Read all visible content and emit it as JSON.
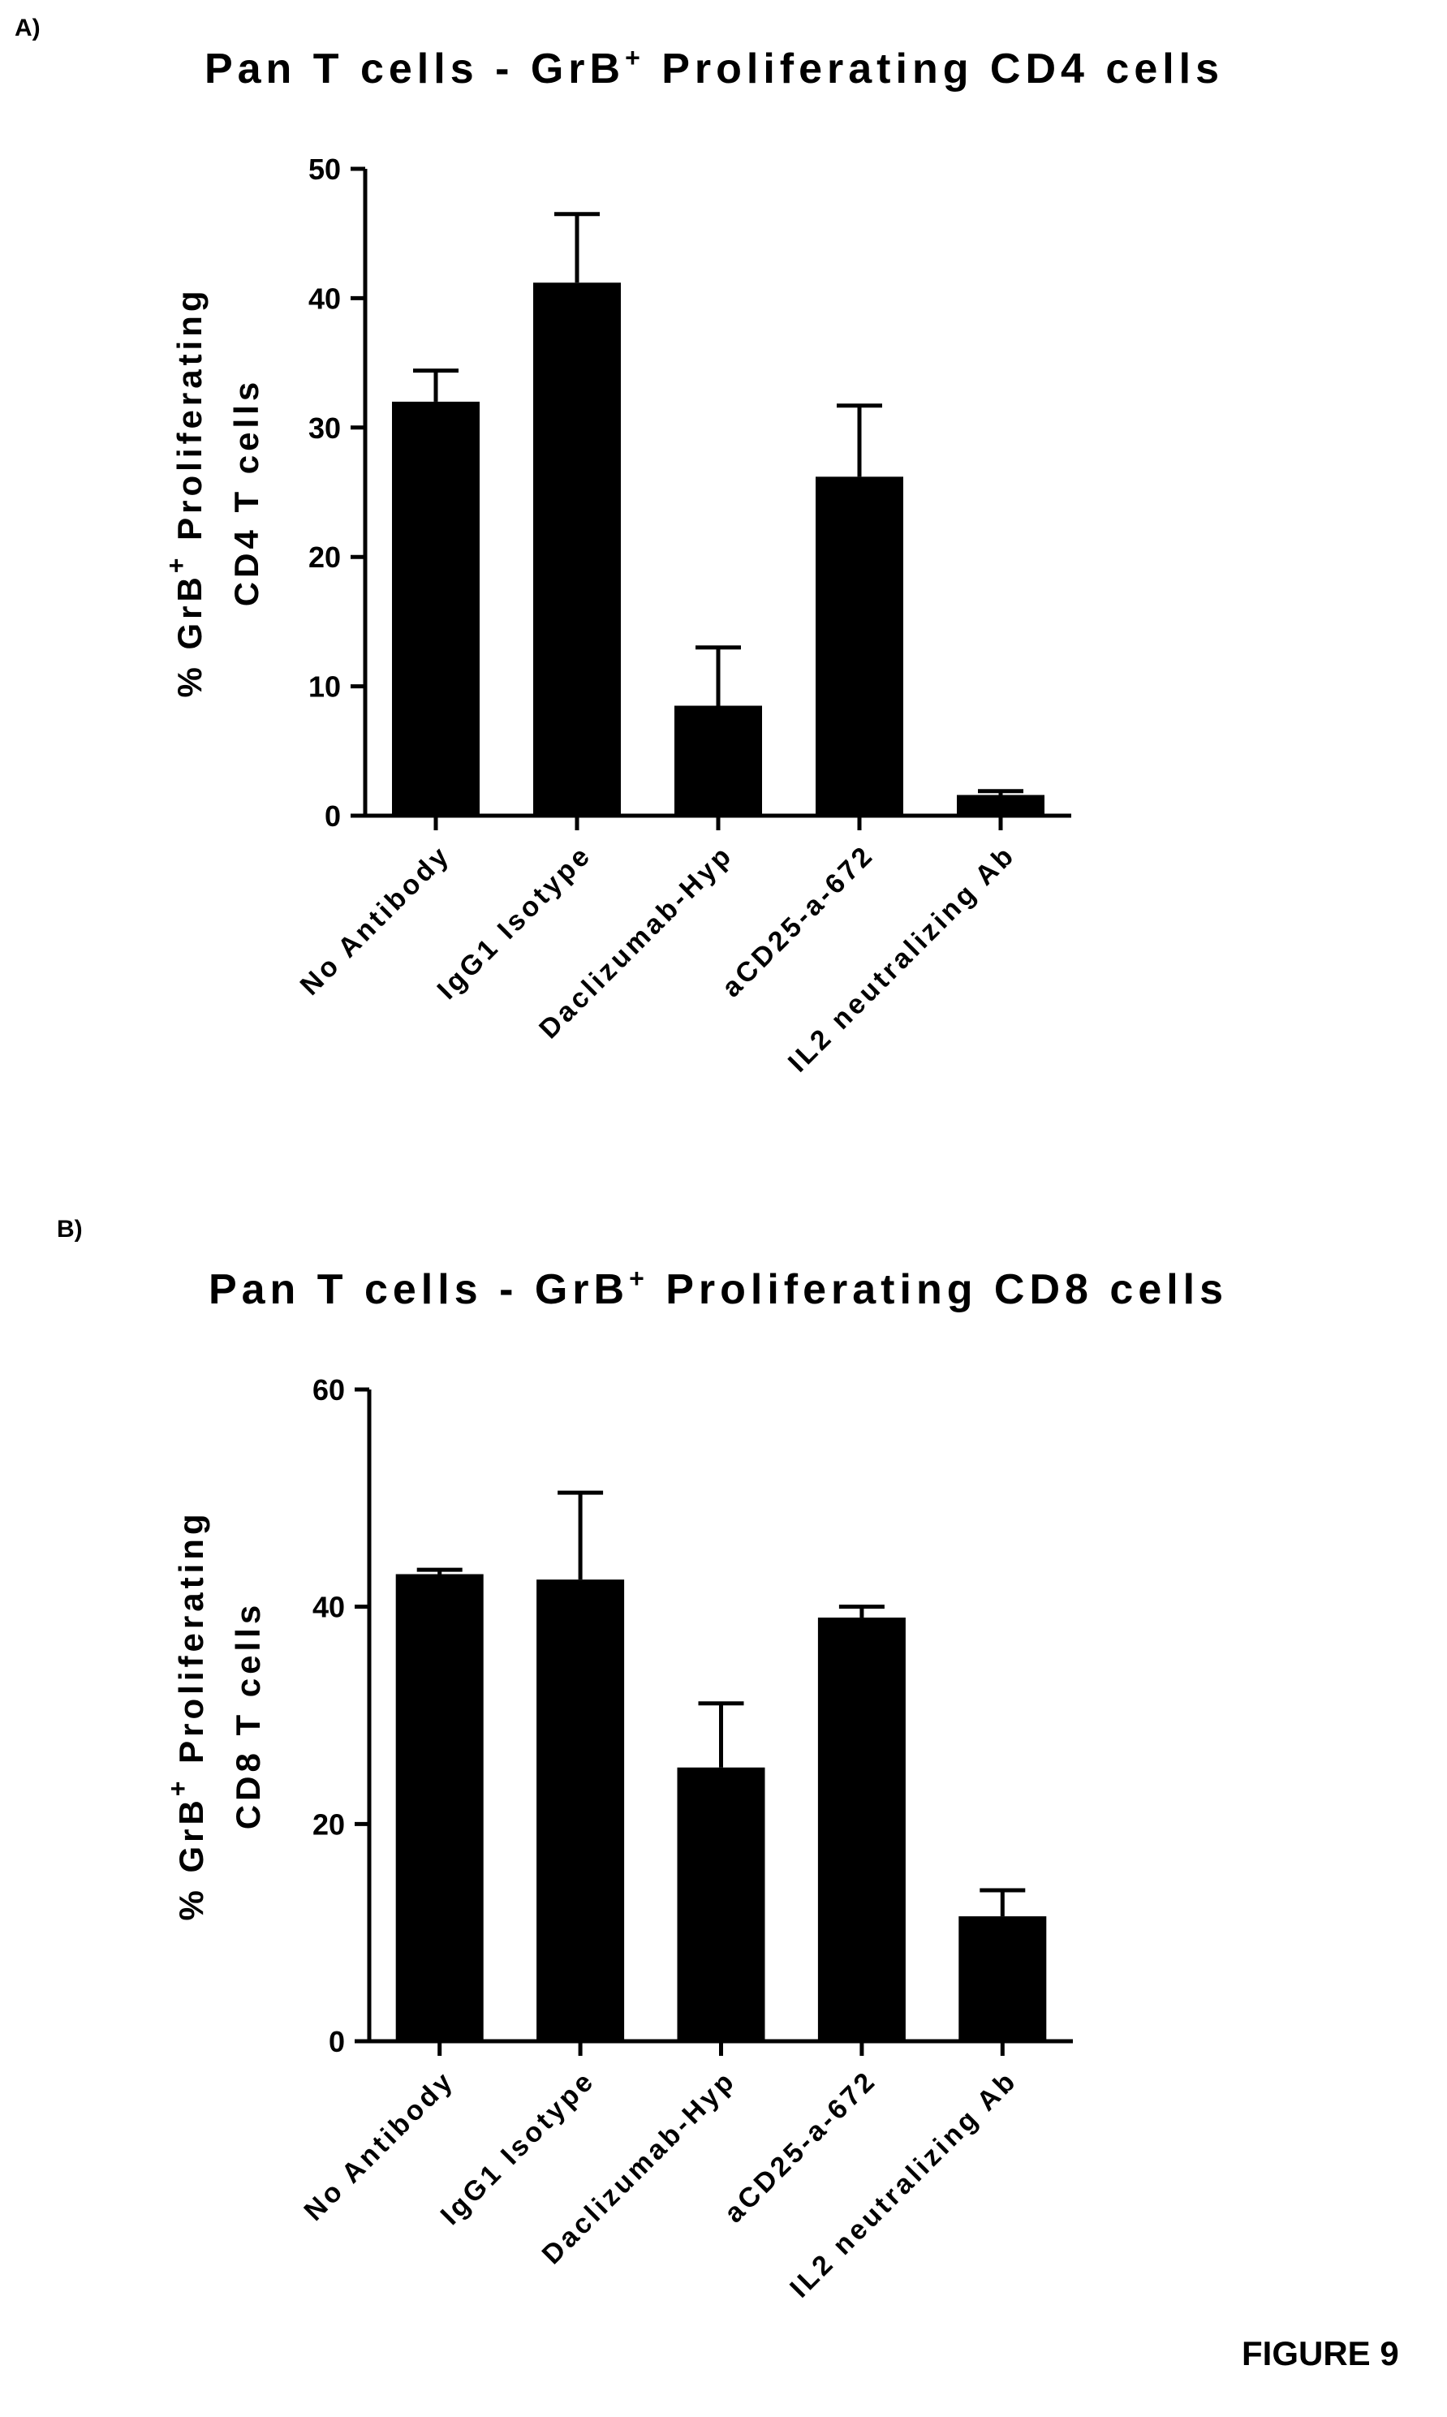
{
  "panels": {
    "a_letter": "A)",
    "b_letter": "B)"
  },
  "figure_label": "FIGURE 9",
  "chart_data": [
    {
      "type": "bar",
      "title": "Pan T cells - GrB+ Proliferating CD4 cells",
      "title_parts": {
        "before": "Pan T cells - GrB",
        "sup": "+",
        "after": " Proliferating CD4 cells"
      },
      "ylabel_line1": {
        "before": "% GrB",
        "sup": "+",
        "after": " Proliferating"
      },
      "ylabel_line2": "CD4 T cells",
      "categories": [
        "No Antibody",
        "IgG1 Isotype",
        "Daclizumab-Hyp",
        "aCD25-a-672",
        "IL2 neutralizing Ab"
      ],
      "values": [
        32,
        41.2,
        8.5,
        26.2,
        1.6
      ],
      "errors": [
        2.4,
        5.3,
        4.5,
        5.5,
        0.3
      ],
      "ylim": [
        0,
        50
      ],
      "yticks": [
        0,
        10,
        20,
        30,
        40,
        50
      ],
      "bar_color": "#000000",
      "grid": false
    },
    {
      "type": "bar",
      "title": "Pan T cells - GrB+ Proliferating CD8 cells",
      "title_parts": {
        "before": "Pan T cells - GrB",
        "sup": "+",
        "after": " Proliferating CD8 cells"
      },
      "ylabel_line1": {
        "before": "% GrB",
        "sup": "+",
        "after": " Proliferating"
      },
      "ylabel_line2": "CD8 T cells",
      "categories": [
        "No Antibody",
        "IgG1 Isotype",
        "Daclizumab-Hyp",
        "aCD25-a-672",
        "IL2 neutralizing Ab"
      ],
      "values": [
        43,
        42.5,
        25.2,
        39,
        11.5
      ],
      "errors": [
        0.4,
        8.0,
        5.9,
        1.0,
        2.4
      ],
      "ylim": [
        0,
        60
      ],
      "yticks": [
        0,
        20,
        40,
        60
      ],
      "bar_color": "#000000",
      "grid": false
    }
  ]
}
